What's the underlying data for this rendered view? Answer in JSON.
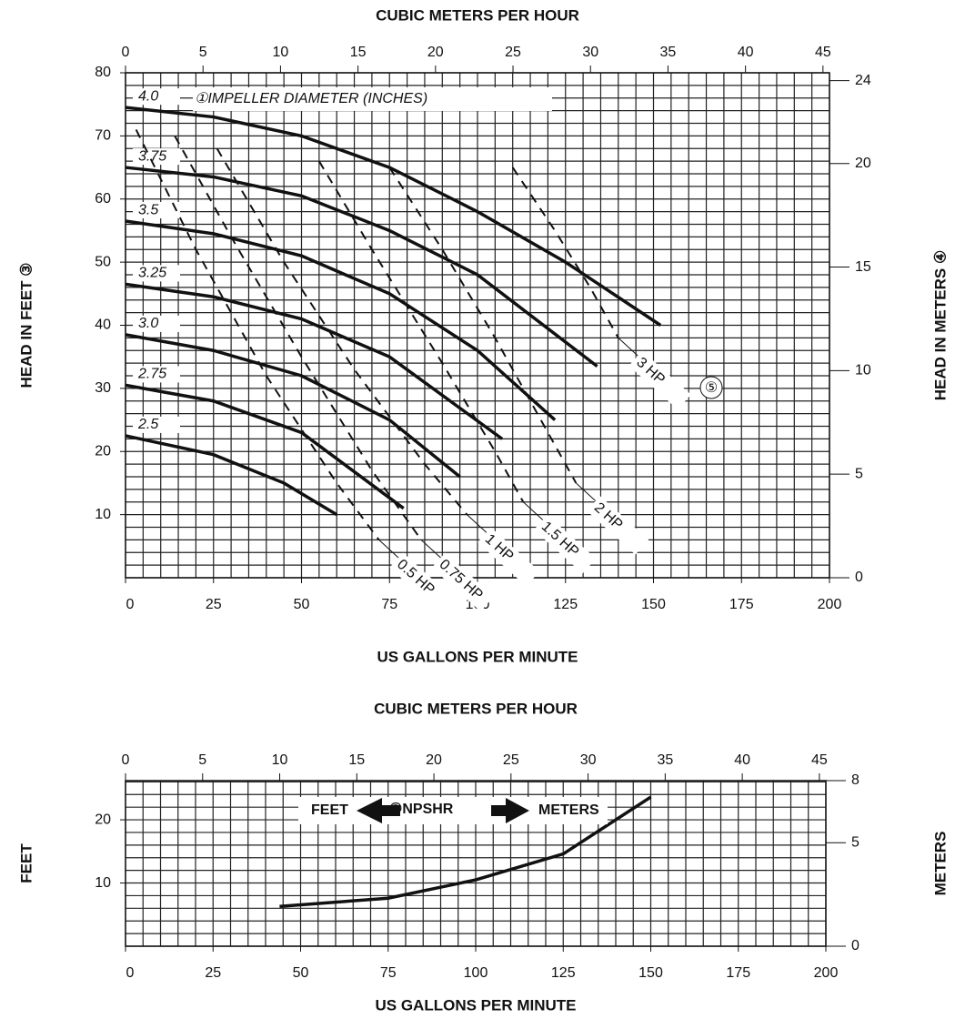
{
  "chart_data": [
    {
      "type": "line",
      "x_label_top": "CUBIC METERS PER HOUR",
      "x_label": "US GALLONS PER MINUTE",
      "y_label": "HEAD IN FEET ③",
      "y2_label": "HEAD IN METERS ④",
      "annotations": [
        "①IMPELLER DIAMETER (INCHES)",
        "⑤"
      ],
      "xlim": [
        0,
        200
      ],
      "xticks": [
        0,
        25,
        50,
        75,
        100,
        125,
        150,
        175,
        200
      ],
      "x2lim": [
        0,
        45.42
      ],
      "x2ticks": [
        0,
        5,
        10,
        15,
        20,
        25,
        30,
        35,
        40,
        45
      ],
      "ylim": [
        0,
        80
      ],
      "yticks": [
        10,
        20,
        30,
        40,
        50,
        60,
        70,
        80
      ],
      "y2lim": [
        0,
        24.38
      ],
      "y2ticks": [
        0,
        5,
        10,
        15,
        20,
        24
      ],
      "grid": true,
      "grid_step": {
        "x": 5,
        "y": 2
      },
      "series": [
        {
          "name": "4.0",
          "line_style": "solid",
          "color": "#111",
          "x": [
            0,
            25,
            50,
            75,
            100,
            125,
            152
          ],
          "values": [
            74.5,
            73,
            70,
            65,
            58,
            50,
            40
          ]
        },
        {
          "name": "3.75",
          "line_style": "solid",
          "color": "#111",
          "x": [
            0,
            25,
            50,
            75,
            100,
            134
          ],
          "values": [
            65,
            63.5,
            60.5,
            55,
            48,
            33.5
          ]
        },
        {
          "name": "3.5",
          "line_style": "solid",
          "color": "#111",
          "x": [
            0,
            25,
            50,
            75,
            100,
            122
          ],
          "values": [
            56.5,
            54.5,
            51,
            45,
            36,
            25
          ]
        },
        {
          "name": "3.25",
          "line_style": "solid",
          "color": "#111",
          "x": [
            0,
            25,
            50,
            75,
            107
          ],
          "values": [
            46.5,
            44.5,
            41,
            35,
            22
          ]
        },
        {
          "name": "3.0",
          "line_style": "solid",
          "color": "#111",
          "x": [
            0,
            25,
            50,
            75,
            95
          ],
          "values": [
            38.5,
            36,
            32,
            25,
            16
          ]
        },
        {
          "name": "2.75",
          "line_style": "solid",
          "color": "#111",
          "x": [
            0,
            25,
            50,
            79
          ],
          "values": [
            30.5,
            28,
            23,
            11
          ]
        },
        {
          "name": "2.5",
          "line_style": "solid",
          "color": "#111",
          "x": [
            0,
            25,
            45,
            60
          ],
          "values": [
            22.5,
            19.5,
            15,
            10
          ]
        },
        {
          "name": "0.5 HP",
          "line_style": "dashed",
          "color": "#111",
          "x": [
            3,
            20,
            40,
            60,
            72
          ],
          "values": [
            71,
            52,
            32,
            15,
            6
          ]
        },
        {
          "name": "0.75 HP",
          "line_style": "dashed",
          "color": "#111",
          "x": [
            14,
            30,
            50,
            70,
            84
          ],
          "values": [
            70,
            54,
            35,
            17,
            6
          ]
        },
        {
          "name": "1 HP",
          "line_style": "dashed",
          "color": "#111",
          "x": [
            26,
            45,
            65,
            85,
            97
          ],
          "values": [
            68,
            50,
            33,
            18,
            10
          ]
        },
        {
          "name": "1.5 HP",
          "line_style": "dashed",
          "color": "#111",
          "x": [
            55,
            70,
            90,
            105,
            113
          ],
          "values": [
            66,
            52,
            34,
            20,
            12
          ]
        },
        {
          "name": "2 HP",
          "line_style": "dashed",
          "color": "#111",
          "x": [
            75,
            90,
            105,
            118,
            128
          ],
          "values": [
            65,
            52,
            38,
            25,
            15
          ]
        },
        {
          "name": "3 HP",
          "line_style": "dashed",
          "color": "#111",
          "x": [
            110,
            122,
            132,
            140
          ],
          "values": [
            65,
            55,
            46,
            38
          ]
        }
      ]
    },
    {
      "type": "line",
      "x_label_top": "CUBIC METERS PER HOUR",
      "x_label": "US GALLONS PER MINUTE",
      "y_label": "FEET",
      "y2_label": "METERS",
      "annotations": [
        "FEET",
        "②NPSHR",
        "METERS"
      ],
      "xlim": [
        0,
        200
      ],
      "xticks": [
        0,
        25,
        50,
        75,
        100,
        125,
        150,
        175,
        200
      ],
      "x2lim": [
        0,
        45.42
      ],
      "x2ticks": [
        0,
        5,
        10,
        15,
        20,
        25,
        30,
        35,
        40,
        45
      ],
      "ylim": [
        0,
        26.2
      ],
      "yticks": [
        10,
        20
      ],
      "y2lim": [
        0,
        8
      ],
      "y2ticks": [
        0,
        5,
        8
      ],
      "grid": true,
      "grid_step": {
        "x": 5,
        "y": 2
      },
      "series": [
        {
          "name": "NPSHR",
          "line_style": "solid",
          "color": "#111",
          "x": [
            44,
            75,
            100,
            125,
            150
          ],
          "values": [
            6.3,
            7.6,
            10.5,
            14.6,
            23.6
          ]
        }
      ]
    }
  ]
}
